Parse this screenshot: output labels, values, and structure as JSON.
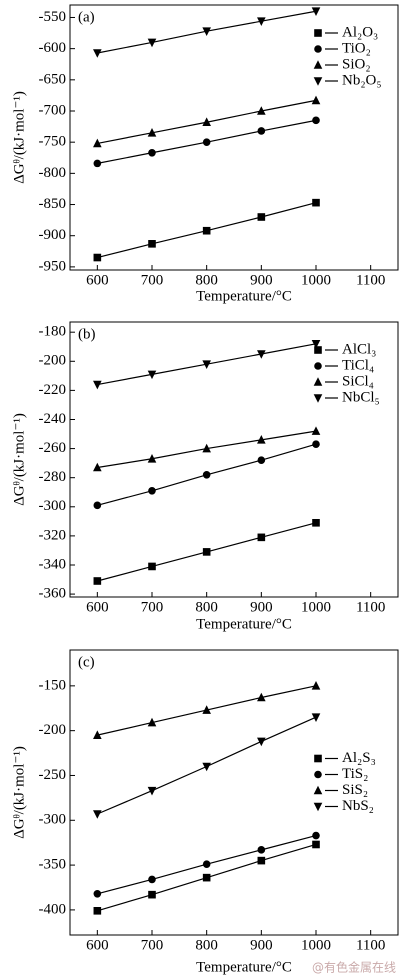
{
  "chart_data": [
    {
      "type": "line",
      "label": "(a)",
      "x_label": "Temperature/°C",
      "y_label": "ΔGᶿ/(kJ·mol⁻¹)",
      "x": [
        600,
        700,
        800,
        900,
        1000
      ],
      "xlim": [
        550,
        1150
      ],
      "xticks": [
        600,
        700,
        800,
        900,
        1000,
        1100
      ],
      "ylim": [
        -955,
        -530
      ],
      "yticks": [
        -950,
        -900,
        -850,
        -800,
        -750,
        -700,
        -650,
        -600,
        -550
      ],
      "legend": "upper right",
      "series": [
        {
          "name": "Al₂O₃",
          "color": "#000000",
          "marker": "square",
          "values": [
            -935,
            -913,
            -892,
            -870,
            -847
          ]
        },
        {
          "name": "TiO₂",
          "color": "#000000",
          "marker": "circle",
          "values": [
            -784,
            -767,
            -750,
            -732,
            -715
          ]
        },
        {
          "name": "SiO₂",
          "color": "#000000",
          "marker": "triangle-up",
          "values": [
            -752,
            -735,
            -718,
            -700,
            -683
          ]
        },
        {
          "name": "Nb₂O₅",
          "color": "#000000",
          "marker": "triangle-down",
          "values": [
            -607,
            -590,
            -572,
            -556,
            -540
          ]
        }
      ]
    },
    {
      "type": "line",
      "label": "(b)",
      "x_label": "Temperature/°C",
      "y_label": "ΔGᶿ/(kJ·mol⁻¹)",
      "x": [
        600,
        700,
        800,
        900,
        1000
      ],
      "xlim": [
        550,
        1150
      ],
      "xticks": [
        600,
        700,
        800,
        900,
        1000,
        1100
      ],
      "ylim": [
        -362,
        -173
      ],
      "yticks": [
        -360,
        -340,
        -320,
        -300,
        -280,
        -260,
        -240,
        -220,
        -200,
        -180
      ],
      "legend": "upper right",
      "series": [
        {
          "name": "AlCl₃",
          "color": "#000000",
          "marker": "square",
          "values": [
            -351,
            -341,
            -331,
            -321,
            -311
          ]
        },
        {
          "name": "TiCl₄",
          "color": "#000000",
          "marker": "circle",
          "values": [
            -299,
            -289,
            -278,
            -268,
            -257
          ]
        },
        {
          "name": "SiCl₄",
          "color": "#000000",
          "marker": "triangle-up",
          "values": [
            -273,
            -267,
            -260,
            -254,
            -248
          ]
        },
        {
          "name": "NbCl₅",
          "color": "#000000",
          "marker": "triangle-down",
          "values": [
            -216,
            -209,
            -202,
            -195,
            -188
          ]
        }
      ]
    },
    {
      "type": "line",
      "label": "(c)",
      "x_label": "Temperature/°C",
      "y_label": "ΔGᶿ/(kJ·mol⁻¹)",
      "x": [
        600,
        700,
        800,
        900,
        1000
      ],
      "xlim": [
        550,
        1150
      ],
      "xticks": [
        600,
        700,
        800,
        900,
        1000,
        1100
      ],
      "ylim": [
        -428,
        -110
      ],
      "yticks": [
        -400,
        -350,
        -300,
        -250,
        -200,
        -150
      ],
      "legend": "center right",
      "series": [
        {
          "name": "Al₂S₃",
          "color": "#000000",
          "marker": "square",
          "values": [
            -401,
            -383,
            -364,
            -345,
            -327
          ]
        },
        {
          "name": "TiS₂",
          "color": "#000000",
          "marker": "circle",
          "values": [
            -382,
            -366,
            -349,
            -333,
            -317
          ]
        },
        {
          "name": "SiS₂",
          "color": "#000000",
          "marker": "triangle-up",
          "values": [
            -205,
            -191,
            -177,
            -163,
            -150
          ]
        },
        {
          "name": "NbS₂",
          "color": "#000000",
          "marker": "triangle-down",
          "values": [
            -293,
            -267,
            -240,
            -212,
            -185
          ]
        }
      ]
    }
  ],
  "watermark": "@有色金属在线"
}
